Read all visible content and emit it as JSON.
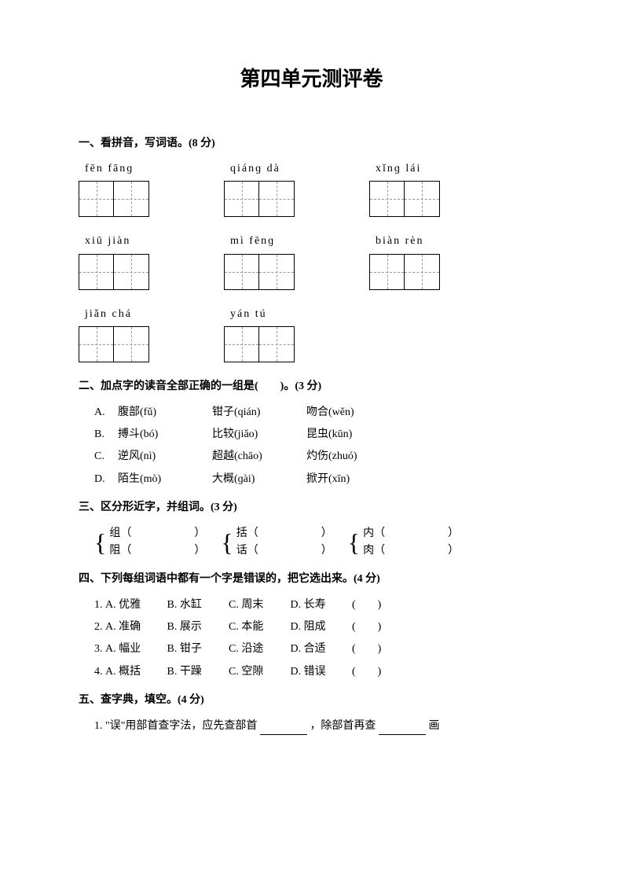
{
  "title": "第四单元测评卷",
  "section1": {
    "heading": "一、看拼音，写词语。(8 分)",
    "rows": [
      [
        {
          "pinyin": "fēn  fānɡ"
        },
        {
          "pinyin": "qiánɡ  dà"
        },
        {
          "pinyin": "xǐnɡ  lái"
        }
      ],
      [
        {
          "pinyin": "xiū  jiàn"
        },
        {
          "pinyin": "mì  fēnɡ"
        },
        {
          "pinyin": "biàn  rèn"
        }
      ],
      [
        {
          "pinyin": "jiǎn  chá"
        },
        {
          "pinyin": "yán  tú"
        }
      ]
    ]
  },
  "section2": {
    "heading": "二、加点字的读音全部正确的一组是(　　)。(3 分)",
    "options": [
      {
        "letter": "A.",
        "words": [
          "腹部(fǔ)",
          "钳子(qián)",
          "吻合(wěn)"
        ]
      },
      {
        "letter": "B.",
        "words": [
          "搏斗(bó)",
          "比较(jiǎo)",
          "昆虫(kūn)"
        ]
      },
      {
        "letter": "C.",
        "words": [
          "逆风(nì)",
          "超越(chāo)",
          "灼伤(zhuó)"
        ]
      },
      {
        "letter": "D.",
        "words": [
          "陌生(mò)",
          "大概(ɡài)",
          "掀开(xīn)"
        ]
      }
    ]
  },
  "section3": {
    "heading": "三、区分形近字，并组词。(3 分)",
    "groups": [
      {
        "top": "组（",
        "bottom": "阻（"
      },
      {
        "top": "括（",
        "bottom": "话（"
      },
      {
        "top": "内（",
        "bottom": "肉（"
      }
    ],
    "close": "）"
  },
  "section4": {
    "heading": "四、下列每组词语中都有一个字是错误的，把它选出来。(4 分)",
    "lines": [
      {
        "num": "1.",
        "opts": [
          "A. 优雅",
          "B. 水缸",
          "C. 周末",
          "D. 长寿"
        ],
        "tail": "(　　)"
      },
      {
        "num": "2.",
        "opts": [
          "A. 准确",
          "B. 展示",
          "C. 本能",
          "D. 阻成"
        ],
        "tail": "(　　)"
      },
      {
        "num": "3.",
        "opts": [
          "A. 幅业",
          "B. 钳子",
          "C. 沿途",
          "D. 合适"
        ],
        "tail": "(　　)"
      },
      {
        "num": "4.",
        "opts": [
          "A. 概括",
          "B. 干躁",
          "C. 空隙",
          "D. 错误"
        ],
        "tail": "(　　)"
      }
    ]
  },
  "section5": {
    "heading": "五、查字典，填空。(4 分)",
    "line1_a": "1. \"误\"用部首查字法，应先查部首",
    "line1_b": "，除部首再查",
    "line1_c": "画"
  },
  "colors": {
    "text": "#000000",
    "bg": "#ffffff",
    "dashed": "#999999"
  }
}
